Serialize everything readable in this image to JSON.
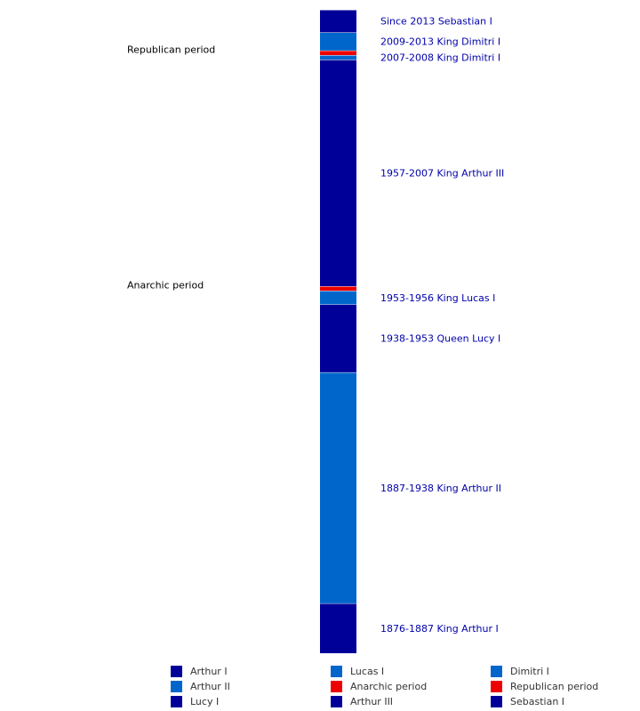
{
  "chart_data": {
    "type": "bar",
    "orientation": "vertical-stacked-timeline",
    "colors": {
      "dark_blue": "#000099",
      "medium_blue": "#0066cc",
      "red": "#ee0000",
      "separator": "#ffffff"
    },
    "segments": [
      {
        "name": "Arthur I",
        "start": 1876,
        "end": 1887,
        "color": "#000099",
        "label": "1876-1887 King Arthur I"
      },
      {
        "name": "Arthur II",
        "start": 1887,
        "end": 1938,
        "color": "#0066cc",
        "label": "1887-1938 King Arthur II"
      },
      {
        "name": "Lucy I",
        "start": 1938,
        "end": 1953,
        "color": "#000099",
        "label": "1938-1953 Queen Lucy I"
      },
      {
        "name": "Lucas I",
        "start": 1953,
        "end": 1956,
        "color": "#0066cc",
        "label": "1953-1956 King Lucas I"
      },
      {
        "name": "Anarchic period",
        "start": 1956,
        "end": 1957,
        "color": "#ee0000",
        "label": "Anarchic period",
        "label_side": "left"
      },
      {
        "name": "Arthur III",
        "start": 1957,
        "end": 2007,
        "color": "#000099",
        "label": "1957-2007 King Arthur III"
      },
      {
        "name": "Dimitri I",
        "start": 2007,
        "end": 2008,
        "color": "#0066cc",
        "label": "2007-2008 King Dimitri I"
      },
      {
        "name": "Republican period",
        "start": 2008,
        "end": 2009,
        "color": "#ee0000",
        "label": "Republican period",
        "label_side": "left"
      },
      {
        "name": "Dimitri I",
        "start": 2009,
        "end": 2013,
        "color": "#0066cc",
        "label": "2009-2013 King Dimitri I"
      },
      {
        "name": "Sebastian I",
        "start": 2013,
        "end": 2018,
        "color": "#000099",
        "label": "Since 2013 Sebastian I"
      }
    ],
    "legend": [
      {
        "name": "Arthur I",
        "color": "#000099"
      },
      {
        "name": "Lucas I",
        "color": "#0066cc"
      },
      {
        "name": "Dimitri I",
        "color": "#0066cc"
      },
      {
        "name": "Arthur II",
        "color": "#0066cc"
      },
      {
        "name": "Anarchic period",
        "color": "#ee0000"
      },
      {
        "name": "Republican period",
        "color": "#ee0000"
      },
      {
        "name": "Lucy I",
        "color": "#000099"
      },
      {
        "name": "Arthur III",
        "color": "#000099"
      },
      {
        "name": "Sebastian I",
        "color": "#000099"
      }
    ],
    "title": "",
    "xlabel": "",
    "ylabel": ""
  }
}
